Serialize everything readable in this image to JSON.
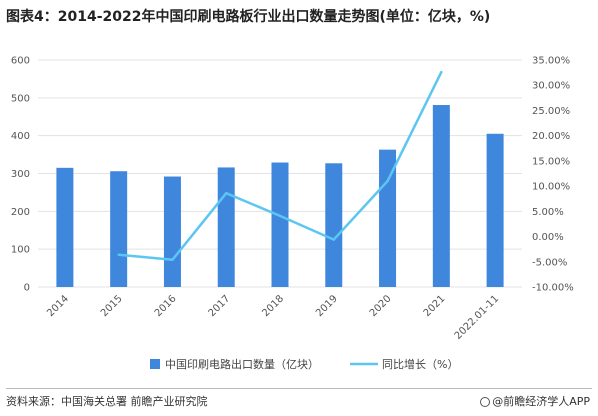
{
  "title": "图表4：2014-2022年中国印刷电路板行业出口数量走势图(单位：亿块，%)",
  "source": "资料来源：中国海关总署 前瞻产业研究院",
  "brand": "@前瞻经济学人APP",
  "colors": {
    "bar": "#3f87dc",
    "line": "#5cc6f2",
    "grid": "#e3e3e3"
  },
  "chart_data": {
    "type": "bar",
    "categories": [
      "2014",
      "2015",
      "2016",
      "2017",
      "2018",
      "2019",
      "2020",
      "2021",
      "2022.01-11"
    ],
    "series": [
      {
        "name": "中国印刷电路出口数量（亿块）",
        "type": "bar",
        "axis": "left",
        "values": [
          315,
          306,
          292,
          316,
          329,
          327,
          363,
          481,
          405
        ]
      },
      {
        "name": "同比增长（%）",
        "type": "line",
        "axis": "right",
        "values": [
          null,
          -3.6,
          -4.6,
          8.6,
          4.1,
          -0.6,
          11.0,
          32.6,
          null
        ]
      }
    ],
    "yleft": {
      "min": 0,
      "max": 600,
      "step": 100,
      "ticks": [
        "0",
        "100",
        "200",
        "300",
        "400",
        "500",
        "600"
      ]
    },
    "yright": {
      "min": -10,
      "max": 35,
      "step": 5,
      "ticks": [
        "-10.00%",
        "-5.00%",
        "0.00%",
        "5.00%",
        "10.00%",
        "15.00%",
        "20.00%",
        "25.00%",
        "30.00%",
        "35.00%"
      ]
    },
    "grid": true,
    "legend_position": "bottom"
  }
}
